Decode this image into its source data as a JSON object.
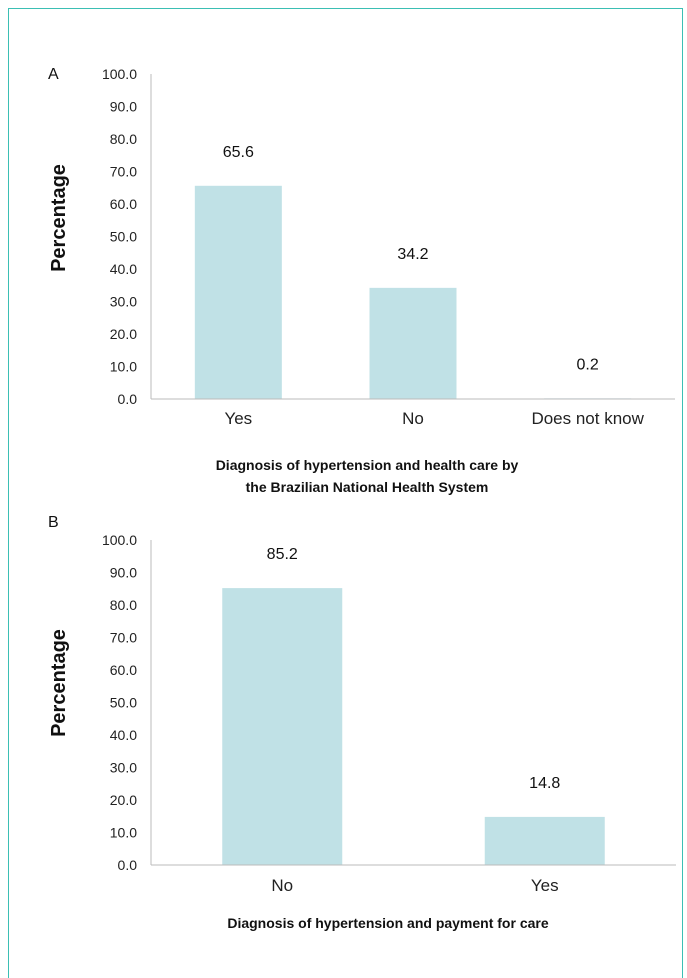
{
  "chart_data": [
    {
      "type": "bar",
      "panel_label": "A",
      "categories": [
        "Yes",
        "No",
        "Does not know"
      ],
      "values": [
        65.6,
        34.2,
        0.2
      ],
      "data_labels": [
        "65.6",
        "34.2",
        "0.2"
      ],
      "ylabel": "Percentage",
      "xlabel_lines": [
        "Diagnosis of hypertension and health care by",
        "the Brazilian National Health System"
      ],
      "yticks": [
        "0.0",
        "10.0",
        "20.0",
        "30.0",
        "40.0",
        "50.0",
        "60.0",
        "70.0",
        "80.0",
        "90.0",
        "100.0"
      ],
      "ylim": [
        0,
        100
      ],
      "grid": false,
      "bar_color": "#c0e1e6"
    },
    {
      "type": "bar",
      "panel_label": "B",
      "categories": [
        "No",
        "Yes"
      ],
      "values": [
        85.2,
        14.8
      ],
      "data_labels": [
        "85.2",
        "14.8"
      ],
      "ylabel": "Percentage",
      "xlabel_lines": [
        "Diagnosis of hypertension and payment for care"
      ],
      "yticks": [
        "0.0",
        "10.0",
        "20.0",
        "30.0",
        "40.0",
        "50.0",
        "60.0",
        "70.0",
        "80.0",
        "90.0",
        "100.0"
      ],
      "ylim": [
        0,
        100
      ],
      "grid": false,
      "bar_color": "#c0e1e6"
    }
  ],
  "colors": {
    "frame_border": "#3bbfb4",
    "axis": "#bbbbbb"
  }
}
